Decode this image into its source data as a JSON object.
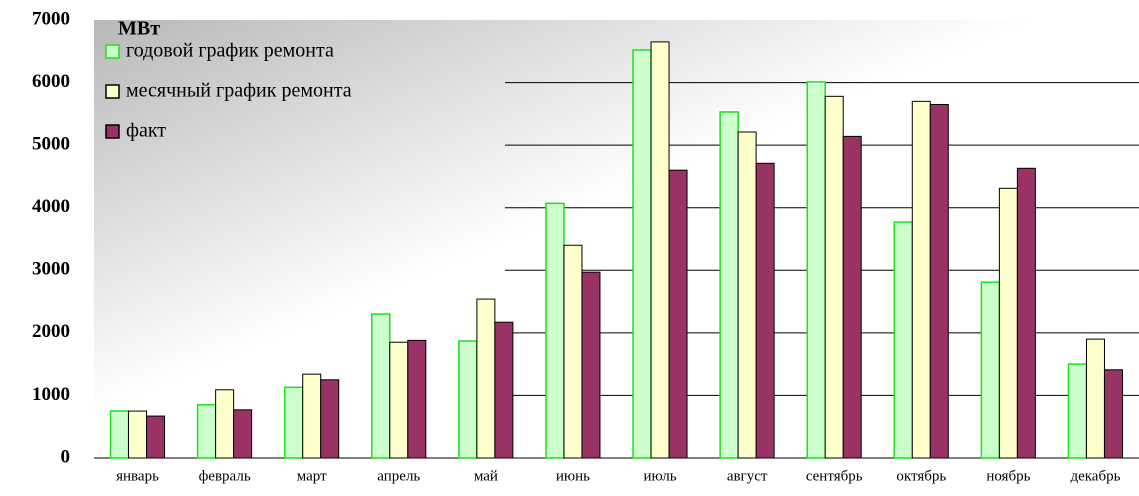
{
  "chart_data": {
    "type": "bar",
    "y_label": "МВт",
    "categories": [
      "январь",
      "февраль",
      "март",
      "апрель",
      "май",
      "июнь",
      "июль",
      "август",
      "сентябрь",
      "октябрь",
      "ноябрь",
      "декабрь"
    ],
    "series": [
      {
        "name": "годовой график ремонта",
        "color": "#ccffcc",
        "values": [
          750,
          850,
          1130,
          2300,
          1870,
          4070,
          6520,
          5530,
          6010,
          3770,
          2810,
          1500
        ]
      },
      {
        "name": "месячный график ремонта",
        "color": "#ffffcc",
        "values": [
          750,
          1090,
          1340,
          1850,
          2540,
          3400,
          6650,
          5210,
          5780,
          5700,
          4310,
          1900
        ]
      },
      {
        "name": "факт",
        "color": "#993366",
        "values": [
          670,
          770,
          1250,
          1880,
          2170,
          2970,
          4600,
          4710,
          5140,
          5650,
          4630,
          1410
        ]
      }
    ],
    "ylim": [
      0,
      7000
    ],
    "yticks": [
      0,
      1000,
      2000,
      3000,
      4000,
      5000,
      6000,
      7000
    ],
    "grid": true
  }
}
